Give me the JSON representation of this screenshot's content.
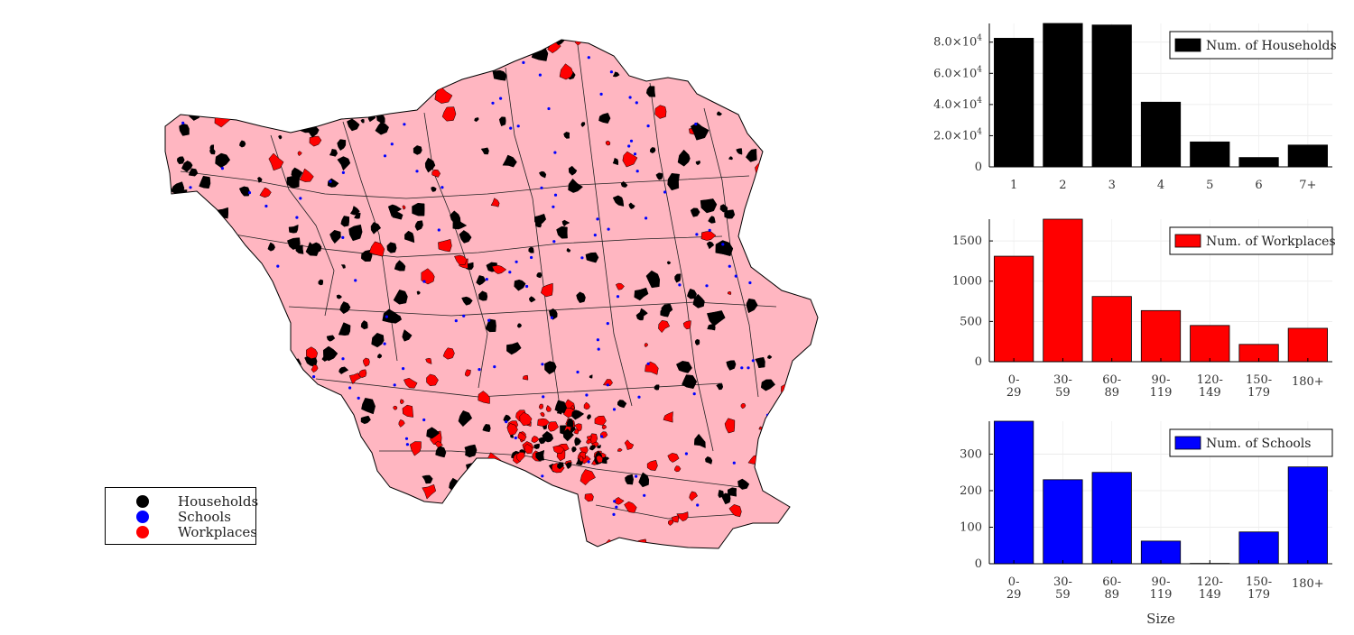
{
  "map": {
    "legend": [
      {
        "label": "Households",
        "color": "#000000"
      },
      {
        "label": "Schools",
        "color": "#0000ff"
      },
      {
        "label": "Workplaces",
        "color": "#ff0000"
      }
    ],
    "region_fill": "#ffb6c1"
  },
  "chart_data": [
    {
      "type": "bar",
      "categories": [
        "1",
        "2",
        "3",
        "4",
        "5",
        "6",
        "7+"
      ],
      "series": [
        {
          "name": "Num. of Households",
          "values": [
            82500,
            92000,
            91000,
            41500,
            16000,
            6000,
            14000
          ],
          "color": "#000000"
        }
      ],
      "yticks": [
        0,
        20000,
        40000,
        60000,
        80000
      ],
      "ytick_labels": [
        {
          "base": "0",
          "exp": ""
        },
        {
          "base": "2.0×10",
          "exp": "4"
        },
        {
          "base": "4.0×10",
          "exp": "4"
        },
        {
          "base": "6.0×10",
          "exp": "4"
        },
        {
          "base": "8.0×10",
          "exp": "4"
        }
      ],
      "ylim": [
        0,
        92000
      ],
      "xlabel": "",
      "legend_position": "top-right"
    },
    {
      "type": "bar",
      "categories": [
        "0-\n29",
        "30-\n59",
        "60-\n89",
        "90-\n119",
        "120-\n149",
        "150-\n179",
        "180+"
      ],
      "series": [
        {
          "name": "Num. of Workplaces",
          "values": [
            1310,
            1770,
            810,
            635,
            450,
            215,
            415
          ],
          "color": "#ff0000"
        }
      ],
      "yticks": [
        0,
        500,
        1000,
        1500
      ],
      "ytick_labels": [
        {
          "base": "0",
          "exp": ""
        },
        {
          "base": "500",
          "exp": ""
        },
        {
          "base": "1000",
          "exp": ""
        },
        {
          "base": "1500",
          "exp": ""
        }
      ],
      "ylim": [
        0,
        1770
      ],
      "xlabel": "",
      "legend_position": "top-right"
    },
    {
      "type": "bar",
      "categories": [
        "0-\n29",
        "30-\n59",
        "60-\n89",
        "90-\n119",
        "120-\n149",
        "150-\n179",
        "180+"
      ],
      "series": [
        {
          "name": "Num. of Schools",
          "values": [
            390,
            230,
            250,
            62,
            1,
            87,
            265
          ],
          "color": "#0000ff"
        }
      ],
      "yticks": [
        0,
        100,
        200,
        300
      ],
      "ytick_labels": [
        {
          "base": "0",
          "exp": ""
        },
        {
          "base": "100",
          "exp": ""
        },
        {
          "base": "200",
          "exp": ""
        },
        {
          "base": "300",
          "exp": ""
        }
      ],
      "ylim": [
        0,
        390
      ],
      "xlabel": "Size",
      "legend_position": "top-right"
    }
  ]
}
